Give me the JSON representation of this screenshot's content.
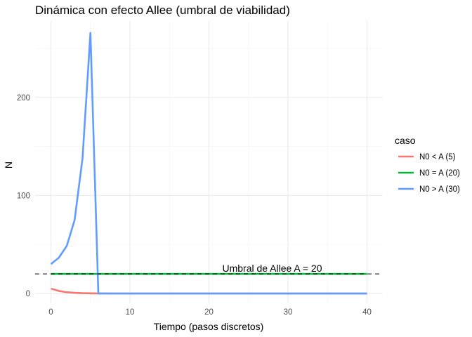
{
  "chart_data": {
    "type": "line",
    "title": "Dinámica con efecto Allee (umbral de viabilidad)",
    "xlabel": "Tiempo (pasos discretos)",
    "ylabel": "N",
    "xlim": [
      -2,
      42
    ],
    "ylim": [
      -10,
      278
    ],
    "x_ticks": [
      0,
      10,
      20,
      30,
      40
    ],
    "y_ticks": [
      0,
      100,
      200
    ],
    "grid": true,
    "legend": {
      "title": "caso",
      "position": "right"
    },
    "threshold": {
      "value": 20,
      "label": "Umbral de Allee A = 20",
      "label_x": 28,
      "style": "dashed",
      "color": "#000000"
    },
    "series": [
      {
        "name": "N0 < A (5)",
        "color": "#F8766D",
        "x": [
          0,
          1,
          2,
          3,
          4,
          5,
          6,
          7,
          8,
          9,
          10,
          11,
          12,
          13,
          14,
          15,
          16,
          17,
          18,
          19,
          20,
          21,
          22,
          23,
          24,
          25,
          26,
          27,
          28,
          29,
          30,
          31,
          32,
          33,
          34,
          35,
          36,
          37,
          38,
          39,
          40
        ],
        "values": [
          5,
          2.6,
          1.3,
          0.7,
          0.35,
          0.18,
          0.09,
          0.05,
          0.02,
          0.01,
          0,
          0,
          0,
          0,
          0,
          0,
          0,
          0,
          0,
          0,
          0,
          0,
          0,
          0,
          0,
          0,
          0,
          0,
          0,
          0,
          0,
          0,
          0,
          0,
          0,
          0,
          0,
          0,
          0,
          0,
          0
        ]
      },
      {
        "name": "N0 = A (20)",
        "color": "#00BA38",
        "x": [
          0,
          1,
          2,
          3,
          4,
          5,
          6,
          7,
          8,
          9,
          10,
          11,
          12,
          13,
          14,
          15,
          16,
          17,
          18,
          19,
          20,
          21,
          22,
          23,
          24,
          25,
          26,
          27,
          28,
          29,
          30,
          31,
          32,
          33,
          34,
          35,
          36,
          37,
          38,
          39,
          40
        ],
        "values": [
          20,
          20,
          20,
          20,
          20,
          20,
          20,
          20,
          20,
          20,
          20,
          20,
          20,
          20,
          20,
          20,
          20,
          20,
          20,
          20,
          20,
          20,
          20,
          20,
          20,
          20,
          20,
          20,
          20,
          20,
          20,
          20,
          20,
          20,
          20,
          20,
          20,
          20,
          20,
          20,
          20
        ]
      },
      {
        "name": "N0 > A (30)",
        "color": "#619CFF",
        "x": [
          0,
          1,
          2,
          3,
          4,
          5,
          6,
          7,
          8,
          9,
          10,
          11,
          12,
          13,
          14,
          15,
          16,
          17,
          18,
          19,
          20,
          21,
          22,
          23,
          24,
          25,
          26,
          27,
          28,
          29,
          30,
          31,
          32,
          33,
          34,
          35,
          36,
          37,
          38,
          39,
          40
        ],
        "values": [
          30,
          36.5,
          48.5,
          75,
          138,
          266,
          0,
          0,
          0,
          0,
          0,
          0,
          0,
          0,
          0,
          0,
          0,
          0,
          0,
          0,
          0,
          0,
          0,
          0,
          0,
          0,
          0,
          0,
          0,
          0,
          0,
          0,
          0,
          0,
          0,
          0,
          0,
          0,
          0,
          0,
          0
        ]
      }
    ]
  }
}
